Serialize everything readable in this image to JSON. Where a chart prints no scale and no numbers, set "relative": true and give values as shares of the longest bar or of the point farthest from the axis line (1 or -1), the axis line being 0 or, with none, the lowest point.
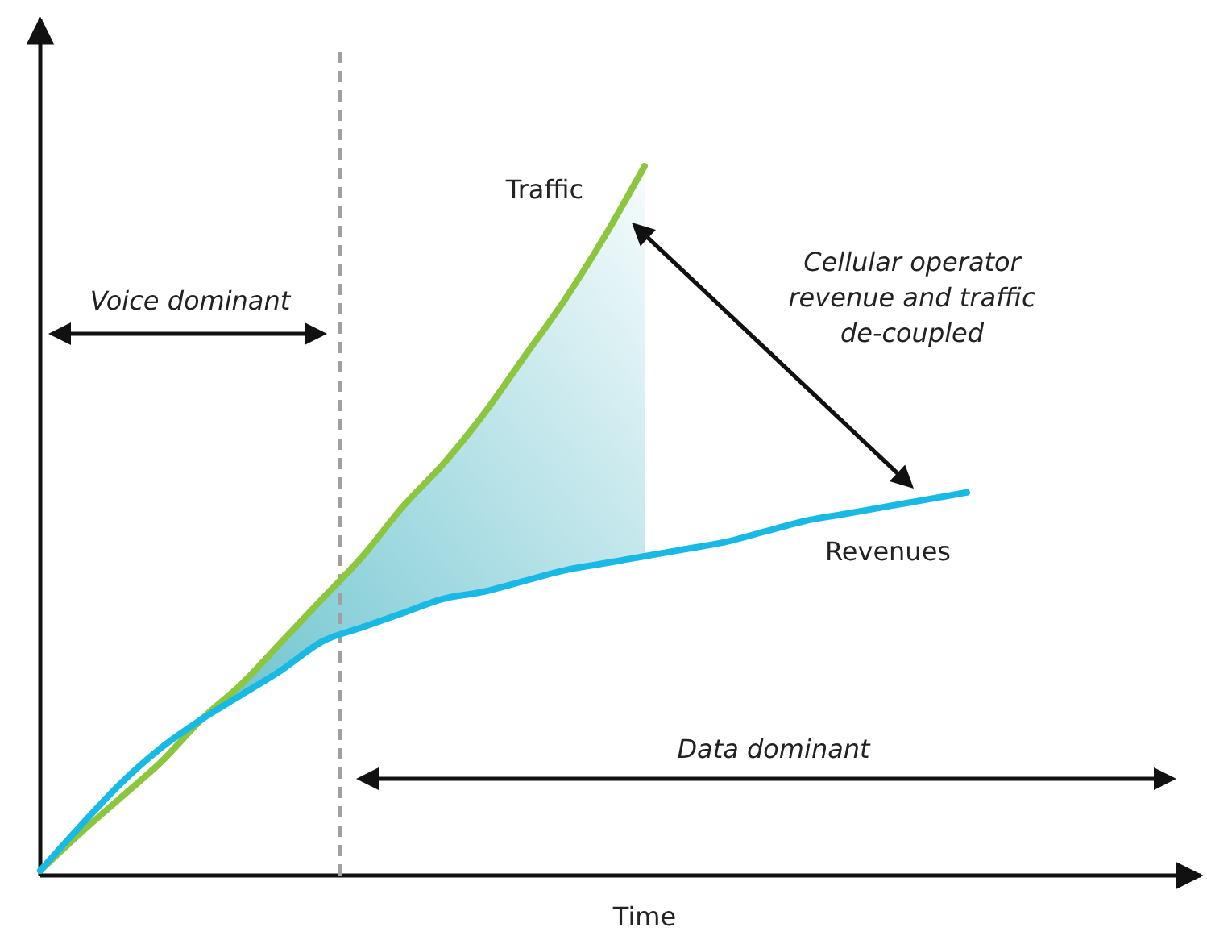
{
  "chart_data": {
    "type": "line",
    "relative": true,
    "xlabel": "Time",
    "categories": [
      null,
      null,
      null,
      null,
      null,
      null,
      null,
      null,
      null,
      null,
      null,
      null,
      null,
      null,
      null,
      null,
      null,
      null,
      null,
      null,
      null,
      null,
      null,
      null
    ],
    "series": [
      {
        "name": "Traffic",
        "color": "#8cc63e",
        "values": [
          0.007,
          0.06,
          0.11,
          0.16,
          0.22,
          0.27,
          0.33,
          0.39,
          0.45,
          0.52,
          0.58,
          0.65,
          0.73,
          0.81,
          0.9,
          1,
          null,
          null,
          null,
          null,
          null,
          null,
          null,
          null
        ],
        "lower": [
          null,
          null,
          null,
          null,
          0.22,
          0.255,
          0.29,
          0.33,
          0.35,
          0.37,
          0.39,
          0.4,
          0.415,
          0.43,
          0.44,
          0.45,
          null,
          null,
          null,
          null,
          null,
          null,
          null,
          null
        ],
        "upper": [
          null,
          null,
          null,
          null,
          0.22,
          0.27,
          0.33,
          0.39,
          0.45,
          0.52,
          0.58,
          0.65,
          0.73,
          0.81,
          0.9,
          1,
          null,
          null,
          null,
          null,
          null,
          null,
          null,
          null
        ]
      },
      {
        "name": "Revenues",
        "color": "#19b9e6",
        "values": [
          0.007,
          0.07,
          0.13,
          0.18,
          0.22,
          0.255,
          0.29,
          0.33,
          0.35,
          0.37,
          0.39,
          0.4,
          0.415,
          0.43,
          0.44,
          0.45,
          0.46,
          0.47,
          0.485,
          0.5,
          0.51,
          0.52,
          0.53,
          0.54
        ]
      }
    ],
    "annotations": [
      "Voice dominant",
      "Data dominant",
      "Cellular operator revenue and traffic de-coupled"
    ],
    "grid": false,
    "marker": "none",
    "line_style": "solid"
  }
}
